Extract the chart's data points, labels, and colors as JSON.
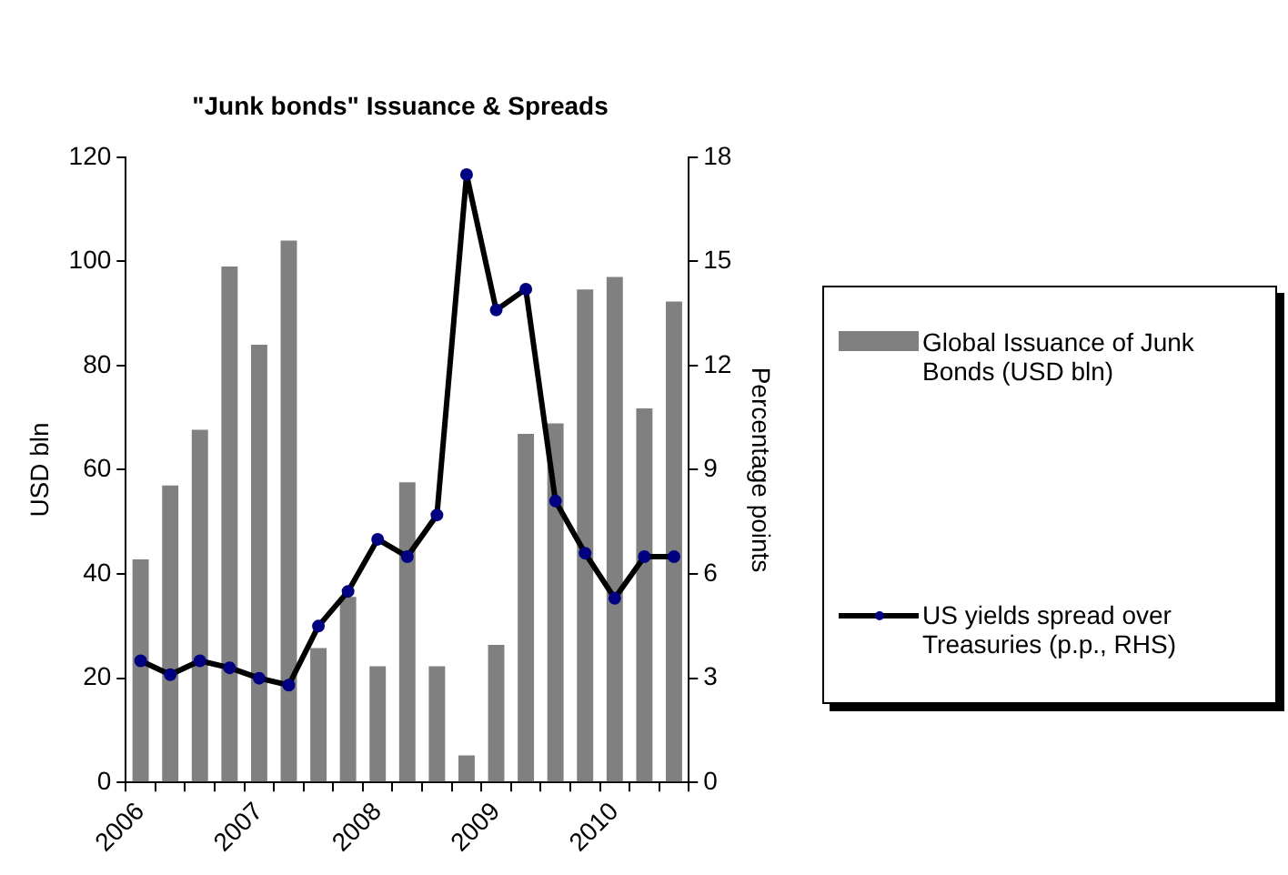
{
  "chart_data": {
    "type": "bar",
    "title": "\"Junk bonds\" Issuance & Spreads",
    "ylabel": "USD bln",
    "y2label": "Percentage points",
    "categories": [
      "2006",
      null,
      null,
      null,
      "2007",
      null,
      null,
      null,
      "2008",
      null,
      null,
      null,
      "2009",
      null,
      null,
      null,
      "2010",
      null,
      null
    ],
    "series": [
      {
        "name": "Global Issuance of Junk Bonds (USD bln)",
        "color": "#808080",
        "values": [
          42.8,
          57,
          67.7,
          99,
          84,
          104,
          25.8,
          35.6,
          22.3,
          57.6,
          22.3,
          5.2,
          26.4,
          66.9,
          68.9,
          94.6,
          97,
          71.8,
          92.3
        ]
      },
      {
        "name": "US yields spread over Treasuries (p.p., RHS)",
        "type": "line",
        "axis": "y2",
        "color": "#000000",
        "marker": "circle",
        "values": [
          3.5,
          3.1,
          3.5,
          3.3,
          3.0,
          2.8,
          4.5,
          5.5,
          7.0,
          6.5,
          7.7,
          17.5,
          13.6,
          14.2,
          8.1,
          6.6,
          5.3,
          6.5,
          6.5
        ]
      }
    ],
    "ylim": [
      0,
      120
    ],
    "yticks": [
      0,
      20,
      40,
      60,
      80,
      100,
      120
    ],
    "y2lim": [
      0,
      18
    ],
    "y2ticks": [
      0,
      3,
      6,
      9,
      12,
      15,
      18
    ],
    "grid": false,
    "legend": "right"
  }
}
